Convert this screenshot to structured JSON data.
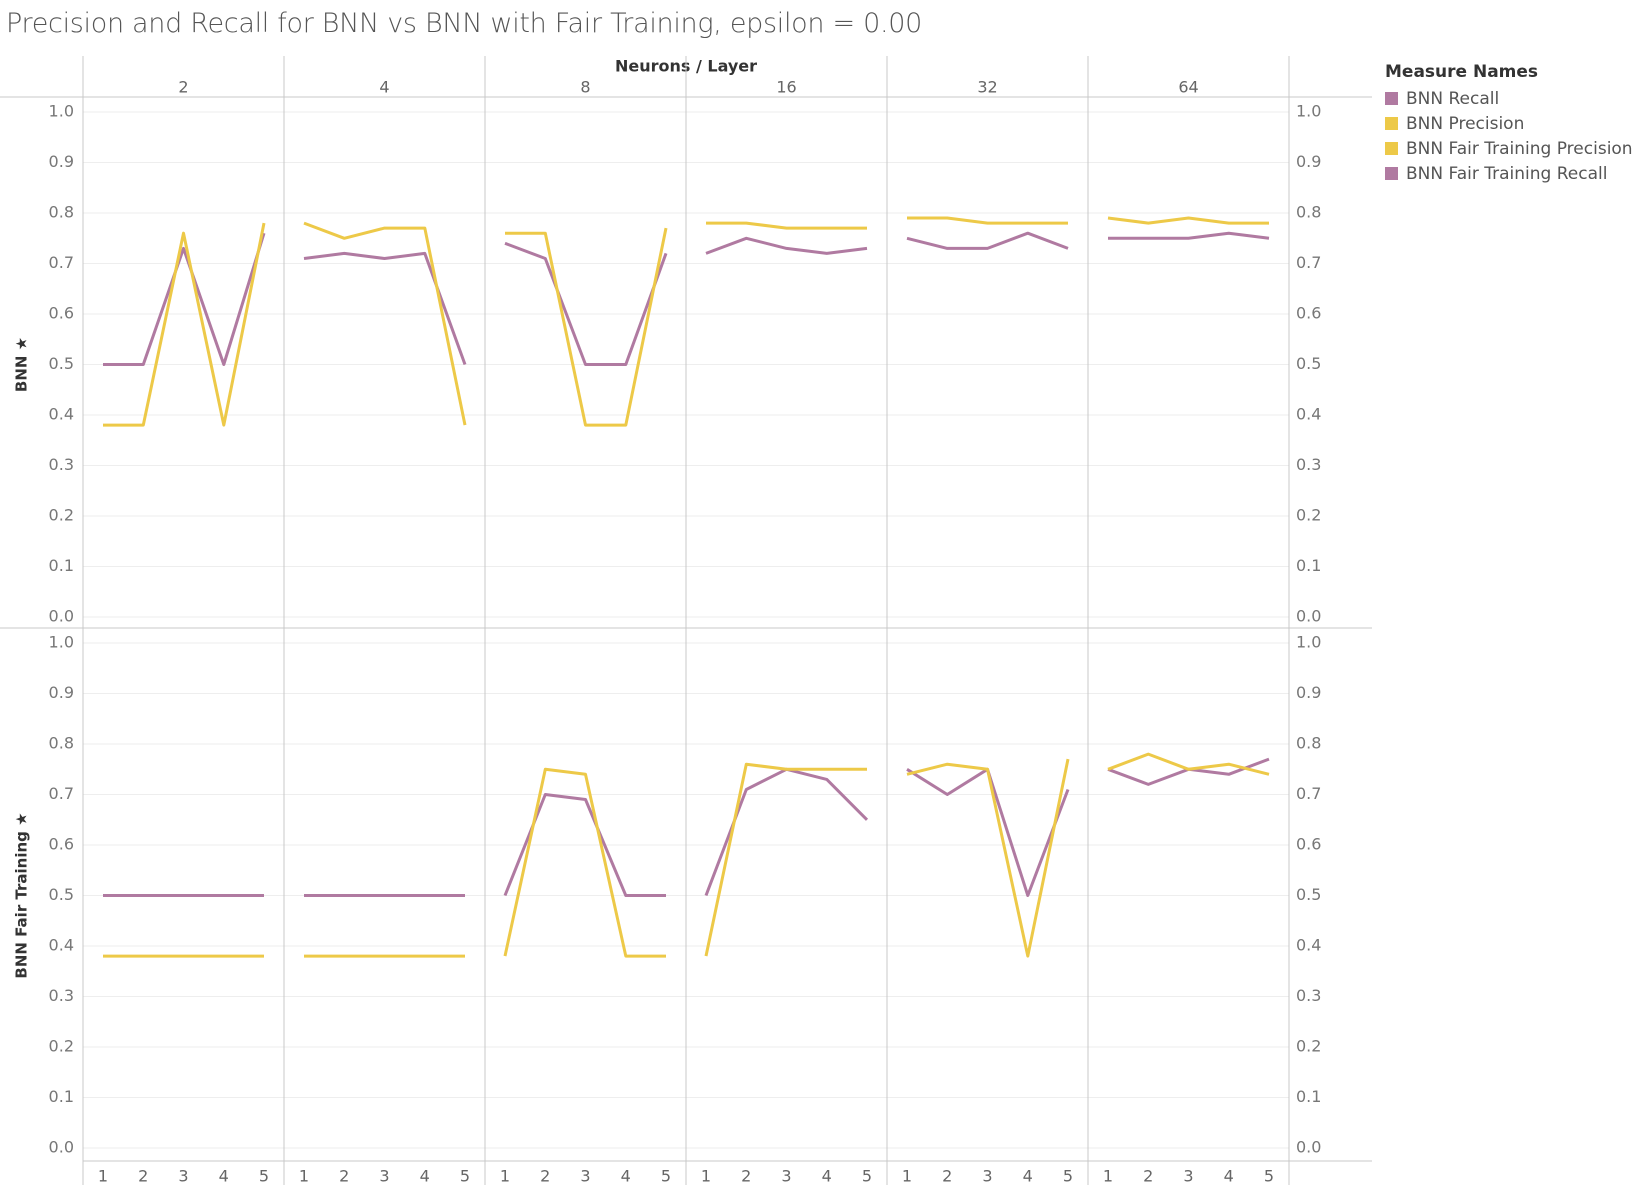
{
  "chart_data": {
    "type": "line",
    "title": "Precision and Recall for BNN vs BNN with Fair Training, epsilon = 0.00",
    "column_header": "Neurons / Layer",
    "columns": [
      "2",
      "4",
      "8",
      "16",
      "32",
      "64"
    ],
    "rows": [
      "BNN",
      "BNN Fair Training"
    ],
    "x": [
      "1",
      "2",
      "3",
      "4",
      "5"
    ],
    "y_ticks": [
      "1.0",
      "0.9",
      "0.8",
      "0.7",
      "0.6",
      "0.5",
      "0.4",
      "0.3",
      "0.2",
      "0.1",
      "0.0"
    ],
    "ylim": [
      0,
      1
    ],
    "legend": {
      "title": "Measure Names",
      "position": "top-right",
      "items": [
        {
          "name": "BNN Recall",
          "color": "#b07aa1"
        },
        {
          "name": "BNN Precision",
          "color": "#edc948"
        },
        {
          "name": "BNN Fair Training Precision",
          "color": "#edc948"
        },
        {
          "name": "BNN Fair Training Recall",
          "color": "#b07aa1"
        }
      ]
    },
    "series_colors": {
      "precision": "#edc948",
      "recall": "#b07aa1"
    },
    "panels": [
      [
        {
          "column": "2",
          "precision": [
            0.38,
            0.38,
            0.76,
            0.38,
            0.78
          ],
          "recall": [
            0.5,
            0.5,
            0.73,
            0.5,
            0.76
          ]
        },
        {
          "column": "4",
          "precision": [
            0.78,
            0.75,
            0.77,
            0.77,
            0.38
          ],
          "recall": [
            0.71,
            0.72,
            0.71,
            0.72,
            0.5
          ]
        },
        {
          "column": "8",
          "precision": [
            0.76,
            0.76,
            0.38,
            0.38,
            0.77
          ],
          "recall": [
            0.74,
            0.71,
            0.5,
            0.5,
            0.72
          ]
        },
        {
          "column": "16",
          "precision": [
            0.78,
            0.78,
            0.77,
            0.77,
            0.77
          ],
          "recall": [
            0.72,
            0.75,
            0.73,
            0.72,
            0.73
          ]
        },
        {
          "column": "32",
          "precision": [
            0.79,
            0.79,
            0.78,
            0.78,
            0.78
          ],
          "recall": [
            0.75,
            0.73,
            0.73,
            0.76,
            0.73
          ]
        },
        {
          "column": "64",
          "precision": [
            0.79,
            0.78,
            0.79,
            0.78,
            0.78
          ],
          "recall": [
            0.75,
            0.75,
            0.75,
            0.76,
            0.75
          ]
        }
      ],
      [
        {
          "column": "2",
          "precision": [
            0.38,
            0.38,
            0.38,
            0.38,
            0.38
          ],
          "recall": [
            0.5,
            0.5,
            0.5,
            0.5,
            0.5
          ]
        },
        {
          "column": "4",
          "precision": [
            0.38,
            0.38,
            0.38,
            0.38,
            0.38
          ],
          "recall": [
            0.5,
            0.5,
            0.5,
            0.5,
            0.5
          ]
        },
        {
          "column": "8",
          "precision": [
            0.38,
            0.75,
            0.74,
            0.38,
            0.38
          ],
          "recall": [
            0.5,
            0.7,
            0.69,
            0.5,
            0.5
          ]
        },
        {
          "column": "16",
          "precision": [
            0.38,
            0.76,
            0.75,
            0.75,
            0.75
          ],
          "recall": [
            0.5,
            0.71,
            0.75,
            0.73,
            0.65
          ]
        },
        {
          "column": "32",
          "precision": [
            0.74,
            0.76,
            0.75,
            0.38,
            0.77
          ],
          "recall": [
            0.75,
            0.7,
            0.75,
            0.5,
            0.71
          ]
        },
        {
          "column": "64",
          "precision": [
            0.75,
            0.78,
            0.75,
            0.76,
            0.74
          ],
          "recall": [
            0.75,
            0.72,
            0.75,
            0.74,
            0.77
          ]
        }
      ]
    ]
  }
}
